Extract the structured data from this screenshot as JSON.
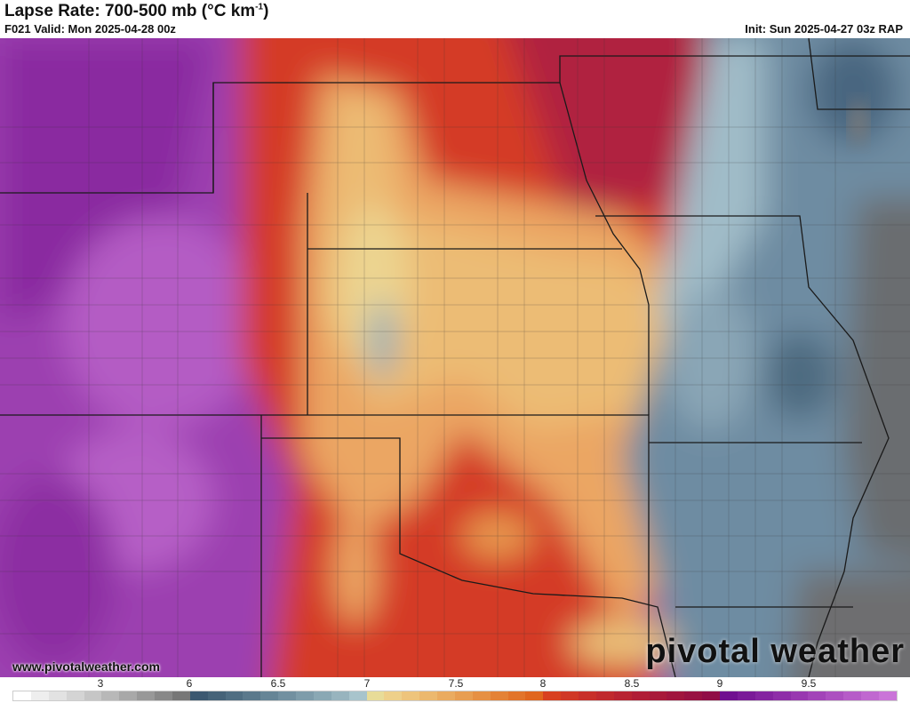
{
  "header": {
    "title_main": "Lapse Rate: 700-500 mb (°C km",
    "title_sup": "-1",
    "title_end": ")",
    "valid": "F021 Valid: Mon 2025-04-28 00z",
    "init": "Init: Sun 2025-04-27 03z RAP"
  },
  "watermark": {
    "site": "www.pivotalweather.com",
    "brand": "pivotal weather"
  },
  "colorbar": {
    "labels": [
      "3",
      "6",
      "6.5",
      "7",
      "7.5",
      "8",
      "8.5",
      "9",
      "9.5"
    ],
    "colors": [
      "#ffffff",
      "#eeeeee",
      "#e2e2e2",
      "#d4d4d4",
      "#c6c6c6",
      "#b8b8b8",
      "#a8a8a8",
      "#989898",
      "#888888",
      "#777777",
      "#3c5870",
      "#466378",
      "#506e82",
      "#5b798c",
      "#668596",
      "#7290a0",
      "#7e9caa",
      "#8aa8b4",
      "#98b4be",
      "#a8c4cc",
      "#e8dc98",
      "#eed08a",
      "#eec47c",
      "#ecb86e",
      "#eaab60",
      "#e89e52",
      "#e69044",
      "#e48236",
      "#e2742a",
      "#e0661e",
      "#d84020",
      "#d03826",
      "#c8302a",
      "#c02a2e",
      "#b82432",
      "#b01e36",
      "#a81a3a",
      "#a0163e",
      "#981242",
      "#900e46",
      "#701090",
      "#7a1a98",
      "#8424a0",
      "#8e2ea8",
      "#9838b0",
      "#a244b8",
      "#ac50c0",
      "#b65cc8",
      "#c068d0",
      "#ca74d8"
    ]
  }
}
